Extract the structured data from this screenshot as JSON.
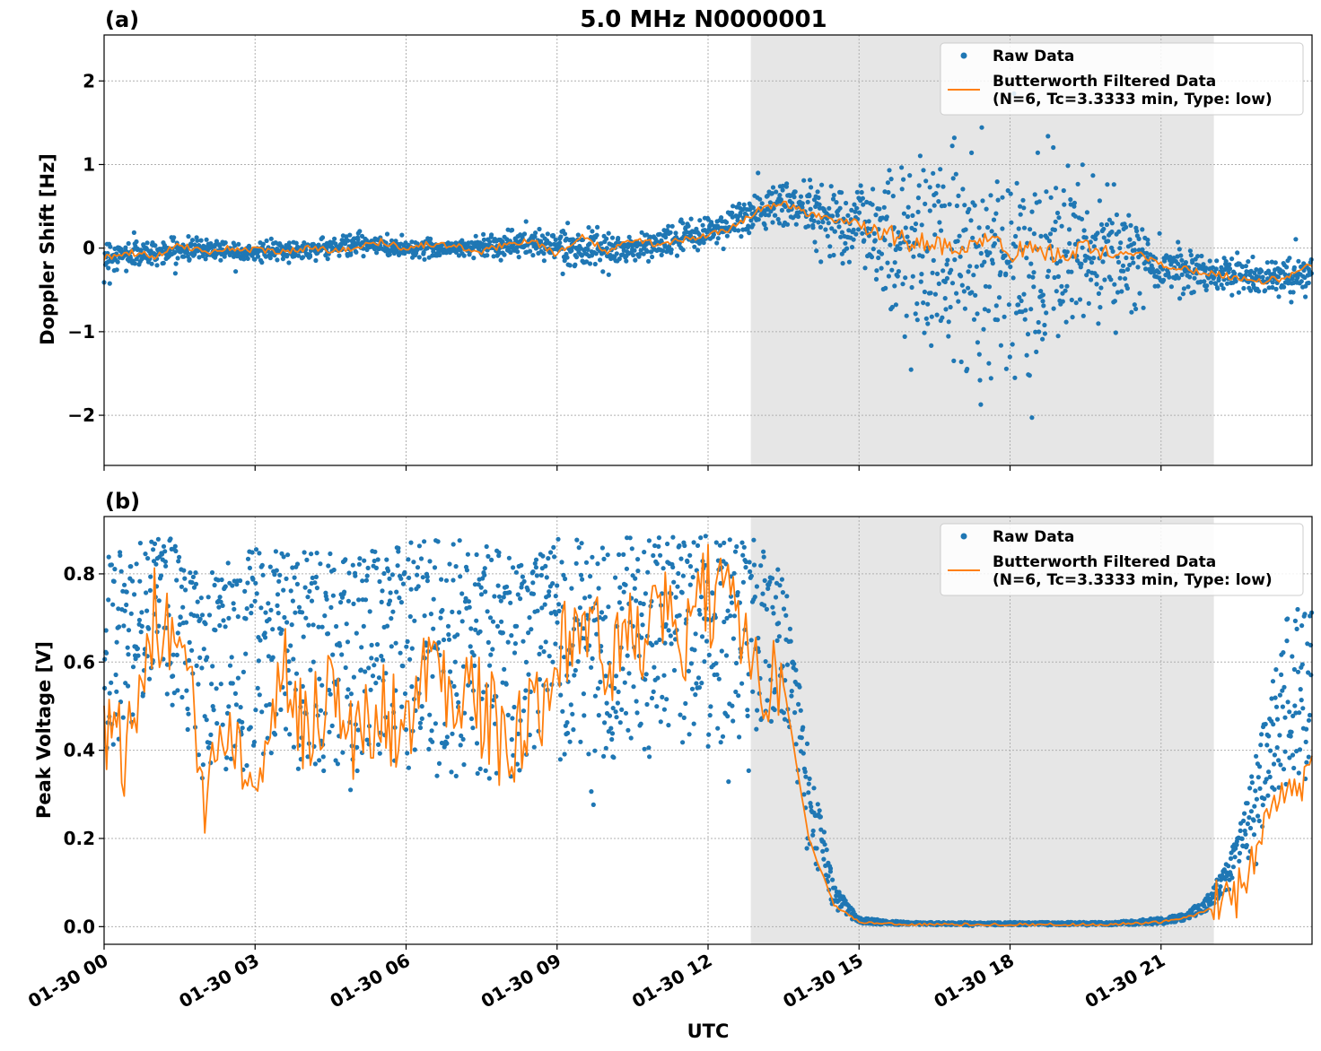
{
  "figure": {
    "title": "5.0 MHz N0000001",
    "xlabel": "UTC",
    "x_tick_labels": [
      "01-30 00",
      "01-30 03",
      "01-30 06",
      "01-30 09",
      "01-30 12",
      "01-30 15",
      "01-30 18",
      "01-30 21"
    ],
    "colors": {
      "raw": "#1f77b4",
      "filtered": "#ff7f0e",
      "shade": "#e6e6e6",
      "grid": "#b0b0b0"
    }
  },
  "chart_data": [
    {
      "type": "scatter",
      "panel_label": "(a)",
      "ylabel": "Doppler Shift [Hz]",
      "x_unit": "hours UTC",
      "xlim": [
        0,
        24
      ],
      "ylim": [
        -2.6,
        2.55
      ],
      "y_ticks": [
        -2,
        -1,
        0,
        1,
        2
      ],
      "y_tick_labels": [
        "−2",
        "−1",
        "0",
        "1",
        "2"
      ],
      "grid": true,
      "legend_position": "top-right",
      "shaded_span": [
        12.85,
        22.05
      ],
      "series": [
        {
          "name": "Raw Data",
          "kind": "scatter",
          "x": [
            0,
            1,
            2,
            3,
            4,
            5,
            6,
            7,
            8,
            9,
            10,
            11,
            12,
            12.9,
            13.5,
            14,
            15,
            16,
            17,
            18,
            19,
            20,
            21,
            22,
            23,
            24
          ],
          "y_center": [
            -0.1,
            -0.05,
            0.0,
            -0.05,
            -0.02,
            0.05,
            0.0,
            0.0,
            0.05,
            0.05,
            -0.05,
            0.05,
            0.2,
            0.4,
            0.55,
            0.45,
            0.3,
            0.0,
            -0.1,
            -0.15,
            -0.1,
            -0.1,
            -0.2,
            -0.3,
            -0.35,
            -0.3
          ],
          "y_spread": [
            0.25,
            0.15,
            0.15,
            0.12,
            0.12,
            0.15,
            0.12,
            0.12,
            0.18,
            0.2,
            0.2,
            0.2,
            0.2,
            0.3,
            0.35,
            0.35,
            0.6,
            1.2,
            1.4,
            1.4,
            1.2,
            0.8,
            0.3,
            0.25,
            0.25,
            0.25
          ]
        },
        {
          "name": "Butterworth Filtered Data\n(N=6, Tc=3.3333 min, Type: low)",
          "kind": "line",
          "x": [
            0,
            0.5,
            1,
            1.5,
            2,
            2.5,
            3,
            3.5,
            4,
            4.5,
            5,
            5.5,
            6,
            6.5,
            7,
            7.5,
            8,
            8.5,
            9,
            9.5,
            10,
            10.5,
            11,
            11.5,
            12,
            12.5,
            13,
            13.5,
            14,
            14.5,
            15,
            15.5,
            16,
            16.5,
            17,
            17.5,
            18,
            18.5,
            19,
            19.5,
            20,
            20.5,
            21,
            21.5,
            22,
            22.5,
            23,
            23.5,
            24
          ],
          "y": [
            -0.12,
            -0.05,
            -0.1,
            0.05,
            -0.05,
            0.0,
            -0.02,
            -0.05,
            0.0,
            -0.02,
            0.0,
            0.08,
            0.0,
            0.05,
            0.02,
            -0.05,
            0.05,
            0.1,
            -0.08,
            0.15,
            -0.05,
            0.1,
            0.05,
            0.1,
            0.15,
            0.25,
            0.45,
            0.55,
            0.4,
            0.35,
            0.3,
            0.2,
            0.05,
            0.1,
            -0.1,
            0.15,
            -0.05,
            0.0,
            -0.1,
            0.0,
            -0.1,
            -0.05,
            -0.2,
            -0.25,
            -0.3,
            -0.35,
            -0.4,
            -0.35,
            -0.2
          ]
        }
      ]
    },
    {
      "type": "scatter",
      "panel_label": "(b)",
      "ylabel": "Peak Voltage [V]",
      "x_unit": "hours UTC",
      "xlim": [
        0,
        24
      ],
      "ylim": [
        -0.04,
        0.93
      ],
      "y_ticks": [
        0.0,
        0.2,
        0.4,
        0.6,
        0.8
      ],
      "y_tick_labels": [
        "0.0",
        "0.2",
        "0.4",
        "0.6",
        "0.8"
      ],
      "grid": true,
      "legend_position": "top-right",
      "shaded_span": [
        12.85,
        22.05
      ],
      "series": [
        {
          "name": "Raw Data",
          "kind": "scatter",
          "x": [
            0,
            1,
            1.5,
            2,
            3,
            4,
            5,
            6,
            7,
            8,
            9,
            10,
            11,
            12,
            12.9,
            13.5,
            14,
            14.5,
            15,
            16,
            18,
            20,
            21,
            21.5,
            22,
            22.5,
            23,
            23.5,
            24
          ],
          "y_low": [
            0.15,
            0.25,
            0.3,
            0.05,
            0.1,
            0.05,
            0.05,
            0.05,
            0.05,
            0.05,
            0.1,
            0.1,
            0.15,
            0.15,
            0.2,
            0.3,
            0.05,
            0.01,
            0.0,
            0.0,
            0.0,
            0.0,
            0.0,
            0.005,
            0.01,
            0.05,
            0.08,
            0.1,
            0.1
          ],
          "y_high": [
            0.85,
            0.88,
            0.88,
            0.8,
            0.86,
            0.85,
            0.85,
            0.87,
            0.88,
            0.85,
            0.88,
            0.88,
            0.89,
            0.89,
            0.88,
            0.82,
            0.4,
            0.1,
            0.02,
            0.01,
            0.01,
            0.01,
            0.02,
            0.03,
            0.08,
            0.2,
            0.45,
            0.7,
            0.75
          ]
        },
        {
          "name": "Butterworth Filtered Data\n(N=6, Tc=3.3333 min, Type: low)",
          "kind": "line",
          "x": [
            0,
            0.5,
            1,
            1.5,
            2,
            2.5,
            3,
            3.5,
            4,
            4.5,
            5,
            5.5,
            6,
            6.5,
            7,
            7.5,
            8,
            8.5,
            9,
            9.5,
            10,
            10.5,
            11,
            11.5,
            12,
            12.5,
            13,
            13.5,
            14,
            14.5,
            15,
            16,
            17,
            18,
            19,
            20,
            21,
            21.5,
            22,
            22.5,
            23,
            23.5,
            24
          ],
          "y": [
            0.45,
            0.4,
            0.7,
            0.65,
            0.3,
            0.5,
            0.35,
            0.6,
            0.45,
            0.55,
            0.4,
            0.5,
            0.45,
            0.6,
            0.55,
            0.5,
            0.4,
            0.45,
            0.65,
            0.7,
            0.6,
            0.65,
            0.7,
            0.65,
            0.75,
            0.7,
            0.6,
            0.55,
            0.2,
            0.05,
            0.01,
            0.005,
            0.005,
            0.005,
            0.005,
            0.005,
            0.01,
            0.02,
            0.04,
            0.08,
            0.2,
            0.3,
            0.35
          ]
        }
      ]
    }
  ]
}
